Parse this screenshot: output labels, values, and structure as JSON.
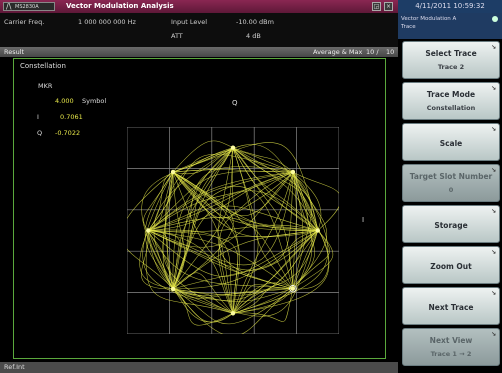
{
  "app": {
    "logo_mark": "/\\",
    "model": "MS2830A",
    "title": "Vector Modulation Analysis",
    "datetime": "4/11/2011 10:59:32"
  },
  "window_controls": {
    "restore": "◲",
    "close": "×"
  },
  "params": {
    "carrier_label": "Carrier Freq.",
    "carrier_value": "1 000 000 000 Hz",
    "input_level_label": "Input Level",
    "input_level_value": "-10.00 dBm",
    "att_label": "ATT",
    "att_value": "4 dB"
  },
  "result_bar": {
    "label": "Result",
    "mode": "Average & Max",
    "count": "10 /",
    "total": "10"
  },
  "panel": {
    "title": "Constellation",
    "q_label": "Q",
    "i_label": "I"
  },
  "marker": {
    "label": "MKR",
    "value": "4.000",
    "unit": "Symbol",
    "i_label": "I",
    "i_value": "0.7061",
    "q_label": "Q",
    "q_value": "-0.7022"
  },
  "footer": {
    "text": "Ref.Int"
  },
  "softkey_header": {
    "line1": "Vector Modulation",
    "page": "A",
    "line2": "Trace"
  },
  "softkeys": [
    {
      "label": "Select Trace",
      "sub": "Trace 2",
      "enabled": true
    },
    {
      "label": "Trace Mode",
      "sub": "Constellation",
      "enabled": true
    },
    {
      "label": "Scale",
      "sub": "",
      "enabled": true
    },
    {
      "label": "Target Slot Number",
      "sub": "0",
      "enabled": false
    },
    {
      "label": "Storage",
      "sub": "",
      "enabled": true
    },
    {
      "label": "Zoom Out",
      "sub": "",
      "enabled": true
    },
    {
      "label": "Next Trace",
      "sub": "",
      "enabled": true
    },
    {
      "label": "Next View",
      "sub": "Trace 1 → 2",
      "enabled": false
    }
  ],
  "colors": {
    "trace": "#e6e84a",
    "panel_border": "#5aa83c",
    "title_bar": "#7a2248",
    "grid": "#8a8a8a"
  },
  "chart_data": {
    "type": "scatter",
    "title": "Constellation",
    "xlabel": "I",
    "ylabel": "Q",
    "grid": true,
    "xlim": [
      -1.25,
      1.25
    ],
    "ylim": [
      -1.25,
      1.25
    ],
    "symbol_points": [
      {
        "i": 1.0,
        "q": 0.0
      },
      {
        "i": 0.7071,
        "q": 0.7071
      },
      {
        "i": 0.0,
        "q": 1.0
      },
      {
        "i": -0.7071,
        "q": 0.7071
      },
      {
        "i": -1.0,
        "q": 0.0
      },
      {
        "i": -0.7071,
        "q": -0.7071
      },
      {
        "i": 0.0,
        "q": -1.0
      },
      {
        "i": 0.7061,
        "q": -0.7022
      }
    ],
    "marker_point": {
      "i": 0.7061,
      "q": -0.7022
    }
  }
}
